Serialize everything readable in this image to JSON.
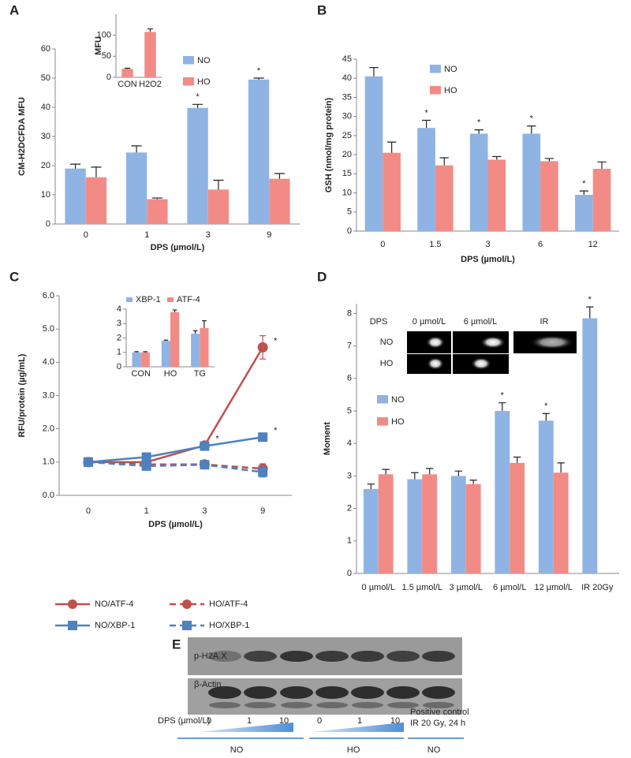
{
  "chart_data": [
    {
      "type": "bar",
      "panel": "A",
      "ylabel": "CM-H2DCFDA MFU",
      "xlabel": "DPS (µmol/L)",
      "categories": [
        "0",
        "1",
        "3",
        "9"
      ],
      "series": [
        {
          "name": "NO",
          "color": "#8fb4e3",
          "values": [
            19,
            24.5,
            39.8,
            49.5
          ],
          "errors": [
            1.5,
            2.3,
            1.2,
            0.5
          ]
        },
        {
          "name": "HO",
          "color": "#f28b86",
          "values": [
            16,
            8.5,
            11.8,
            15.5
          ],
          "errors": [
            3.5,
            0.4,
            3.2,
            1.8
          ]
        }
      ],
      "ylim": [
        0,
        60
      ],
      "yticks": [
        0,
        10,
        20,
        30,
        40,
        50,
        60
      ],
      "annotations": [
        {
          "x": "3",
          "series": "NO",
          "text": "*"
        },
        {
          "x": "9",
          "series": "NO",
          "text": "*"
        }
      ]
    },
    {
      "type": "bar",
      "ylabel": "MFU",
      "categories": [
        "CON",
        "H2O2"
      ],
      "values": [
        20,
        108
      ],
      "errors": [
        1.5,
        7
      ],
      "color": "#f28b86",
      "ylim": [
        0,
        150
      ],
      "yticks": [
        0,
        50,
        100
      ]
    },
    {
      "type": "bar",
      "panel": "B",
      "ylabel": "GSH (nmol/mg protein)",
      "xlabel": "DPS (µmol/L)",
      "categories": [
        "0",
        "1.5",
        "3",
        "6",
        "12"
      ],
      "series": [
        {
          "name": "NO",
          "color": "#8fb4e3",
          "values": [
            40.5,
            27,
            25.5,
            25.5,
            9.5
          ],
          "errors": [
            2.3,
            2,
            1,
            2,
            1
          ]
        },
        {
          "name": "HO",
          "color": "#f28b86",
          "values": [
            20.5,
            17.2,
            18.7,
            18.3,
            16.3
          ],
          "errors": [
            2.8,
            2,
            0.8,
            0.7,
            1.8
          ]
        }
      ],
      "ylim": [
        0,
        45
      ],
      "yticks": [
        0,
        5,
        10,
        15,
        20,
        25,
        30,
        35,
        40,
        45
      ],
      "annotations": [
        {
          "x": "1.5",
          "series": "NO",
          "text": "*"
        },
        {
          "x": "3",
          "series": "NO",
          "text": "*"
        },
        {
          "x": "6",
          "series": "NO",
          "text": "*"
        },
        {
          "x": "12",
          "series": "NO",
          "text": "*"
        }
      ]
    },
    {
      "type": "line",
      "panel": "C",
      "ylabel": "RFU/protein (µg/mL)",
      "xlabel": "DPS (µmol/L)",
      "categories": [
        "0",
        "1",
        "3",
        "9"
      ],
      "series": [
        {
          "name": "NO/ATF-4",
          "color": "#c0504d",
          "marker": "circle",
          "dash": false,
          "values": [
            1,
            1,
            1.5,
            4.45
          ],
          "errors": [
            0.05,
            0.05,
            0.05,
            0.35
          ]
        },
        {
          "name": "HO/ATF-4",
          "color": "#c0504d",
          "marker": "circle",
          "dash": true,
          "values": [
            1,
            0.93,
            0.93,
            0.8
          ],
          "errors": [
            0.05,
            0.05,
            0.05,
            0.15
          ]
        },
        {
          "name": "NO/XBP-1",
          "color": "#4f81bd",
          "marker": "square",
          "dash": false,
          "values": [
            1,
            1.15,
            1.48,
            1.75
          ],
          "errors": [
            0.05,
            0.05,
            0.05,
            0.08
          ]
        },
        {
          "name": "HO/XBP-1",
          "color": "#4f81bd",
          "marker": "square",
          "dash": true,
          "values": [
            1,
            0.88,
            0.92,
            0.7
          ],
          "errors": [
            0.05,
            0.05,
            0.05,
            0.15
          ]
        }
      ],
      "ylim": [
        0,
        6
      ],
      "yticks": [
        {
          "value": 0,
          "label": "0.0"
        },
        {
          "value": 1,
          "label": "1.0"
        },
        {
          "value": 2,
          "label": "2.0"
        },
        {
          "value": 3,
          "label": "3.0"
        },
        {
          "value": 4,
          "label": "4.0"
        },
        {
          "value": 5,
          "label": "5.0"
        },
        {
          "value": 6,
          "label": "6.0"
        }
      ],
      "annotations": [
        {
          "x": "3",
          "series": "NO/ATF-4",
          "text": "*"
        },
        {
          "x": "9",
          "series": "NO/ATF-4",
          "text": "*"
        },
        {
          "x": "9",
          "series": "NO/XBP-1",
          "text": "*"
        }
      ]
    },
    {
      "type": "bar",
      "categories": [
        "CON",
        "HO",
        "TG"
      ],
      "series": [
        {
          "name": "XBP-1",
          "color": "#8fb4e3",
          "values": [
            1,
            1.8,
            2.3
          ],
          "errors": [
            0.05,
            0.05,
            0.2
          ]
        },
        {
          "name": "ATF-4",
          "color": "#f28b86",
          "values": [
            1,
            3.8,
            2.7
          ],
          "errors": [
            0.05,
            0.15,
            0.5
          ]
        }
      ],
      "ylim": [
        0,
        4
      ],
      "yticks": [
        0,
        1,
        2,
        3,
        4
      ]
    },
    {
      "type": "bar",
      "panel": "D",
      "ylabel": "Moment",
      "categories": [
        "0 µmol/L",
        "1.5 µmol/L",
        "3 µmol/L",
        "6 µmol/L",
        "12 µmol/L",
        "IR 20Gy"
      ],
      "series": [
        {
          "name": "NO",
          "color": "#8fb4e3",
          "values": [
            2.6,
            2.9,
            3.0,
            5.0,
            4.7,
            7.85
          ],
          "errors": [
            0.15,
            0.2,
            0.15,
            0.25,
            0.22,
            0.35
          ]
        },
        {
          "name": "HO",
          "color": "#f28b86",
          "values": [
            3.05,
            3.05,
            2.75,
            3.4,
            3.1,
            null
          ],
          "errors": [
            0.15,
            0.18,
            0.12,
            0.18,
            0.3,
            null
          ]
        }
      ],
      "ylim": [
        0,
        8.3
      ],
      "yticks": [
        0,
        1,
        2,
        3,
        4,
        5,
        6,
        7,
        8
      ],
      "annotations": [
        {
          "x": "6 µmol/L",
          "series": "NO",
          "text": "*"
        },
        {
          "x": "12 µmol/L",
          "series": "NO",
          "text": "*"
        },
        {
          "x": "IR 20Gy",
          "series": "NO",
          "text": "*"
        }
      ],
      "image_labels": {
        "header": "DPS",
        "columns": [
          "0 µmol/L",
          "6 µmol/L",
          "IR"
        ],
        "rows": [
          "NO",
          "HO"
        ]
      }
    }
  ],
  "blot": {
    "panel": "E",
    "rows": [
      "p-H2A.X",
      "β-Actin"
    ],
    "dps_label": "DPS (µmol/L)",
    "doses": [
      "0",
      "1",
      "10",
      "0",
      "1",
      "10"
    ],
    "positive_control": [
      "Positive control",
      "IR 20 Gy, 24 h"
    ],
    "groups": [
      "NO",
      "HO",
      "NO"
    ]
  }
}
